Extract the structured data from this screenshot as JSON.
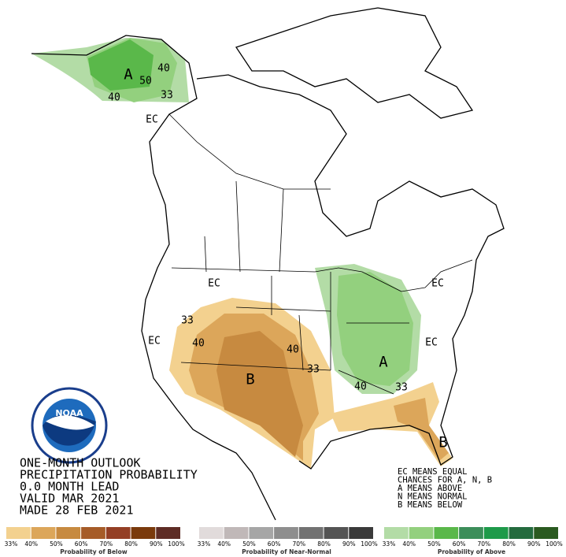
{
  "title_lines": [
    "ONE-MONTH OUTLOOK",
    "PRECIPITATION PROBABILITY",
    "0.0 MONTH LEAD",
    "VALID MAR 2021",
    "MADE 28 FEB 2021"
  ],
  "key_lines": [
    "EC MEANS EQUAL",
    "CHANCES FOR A, N, B",
    "A MEANS ABOVE",
    "N MEANS NORMAL",
    "B MEANS BELOW"
  ],
  "map_labels": [
    "EC",
    "A",
    "40",
    "50",
    "40",
    "33",
    "EC",
    "33",
    "40",
    "EC",
    "40",
    "33",
    "B",
    "A",
    "40",
    "33",
    "EC",
    "EC",
    "B"
  ],
  "logo_text": "NOAA",
  "legends": [
    {
      "title": "Probability of Below",
      "colors": [
        "#f3d18f",
        "#dca65a",
        "#c78a40",
        "#a65c28",
        "#943f25",
        "#7a3a0c",
        "#5e2c25"
      ],
      "ticks": [
        "33%",
        "40%",
        "50%",
        "60%",
        "70%",
        "80%",
        "90%",
        "100%"
      ]
    },
    {
      "title": "Probability of Near-Normal",
      "colors": [
        "#e1dbdb",
        "#c0b8b8",
        "#a6a6a6",
        "#8e8e8e",
        "#727272",
        "#545454",
        "#3a3a3a"
      ],
      "ticks": [
        "33%",
        "40%",
        "50%",
        "60%",
        "70%",
        "80%",
        "90%",
        "100%"
      ]
    },
    {
      "title": "Probability of Above",
      "colors": [
        "#b3dca6",
        "#93d07e",
        "#5ab84a",
        "#3c8e5a",
        "#1e9a4a",
        "#246b3e",
        "#2a5a20"
      ],
      "ticks": [
        "33%",
        "40%",
        "50%",
        "60%",
        "70%",
        "80%",
        "90%",
        "100%"
      ]
    }
  ]
}
